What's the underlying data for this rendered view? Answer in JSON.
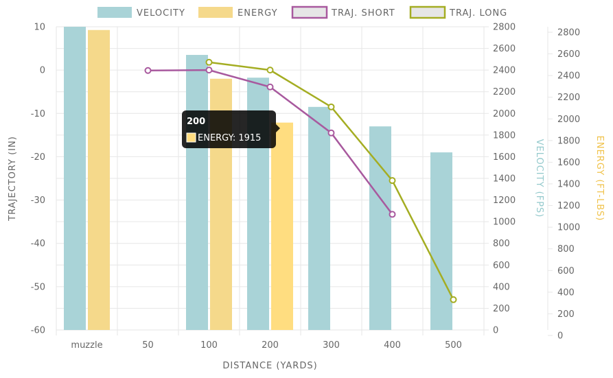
{
  "chart_data": {
    "type": "bar",
    "categories": [
      "muzzle",
      "50",
      "100",
      "200",
      "300",
      "400",
      "500"
    ],
    "xlabel": "DISTANCE (YARDS)",
    "legend_position": "top",
    "grid": true,
    "series": [
      {
        "name": "VELOCITY",
        "type": "bar",
        "axis": "velocity",
        "color": "#a9d3d7",
        "values": [
          2800,
          null,
          2540,
          2330,
          2060,
          1880,
          1640
        ]
      },
      {
        "name": "ENERGY",
        "type": "bar",
        "axis": "energy",
        "color": "#f5d98b",
        "values": [
          2770,
          null,
          2320,
          1915,
          null,
          null,
          null
        ]
      },
      {
        "name": "TRAJ. SHORT",
        "type": "line",
        "axis": "trajectory",
        "color": "#a8599e",
        "values": [
          null,
          -0.1,
          0,
          -3.9,
          -14.5,
          -33.3,
          null
        ]
      },
      {
        "name": "TRAJ. LONG",
        "type": "line",
        "axis": "trajectory",
        "color": "#a4ad22",
        "values": [
          null,
          null,
          1.8,
          0,
          -8.5,
          -25.5,
          -53
        ]
      }
    ],
    "axes": {
      "trajectory": {
        "label": "TRAJECTORY (IN)",
        "min": -60,
        "max": 10,
        "ticks": [
          "10",
          "0",
          "-10",
          "-20",
          "-30",
          "-40",
          "-50",
          "-60"
        ]
      },
      "velocity": {
        "label": "VELOCITY (FPS)",
        "min": 0,
        "max": 2800,
        "ticks": [
          "2800",
          "2600",
          "2400",
          "2200",
          "2000",
          "1800",
          "1600",
          "1400",
          "1200",
          "1000",
          "800",
          "600",
          "400",
          "200",
          "0"
        ]
      },
      "energy": {
        "label": "ENERGY (FT-LBS)",
        "min": 0,
        "max": 2800,
        "ticks": [
          "2800",
          "2600",
          "2400",
          "2200",
          "2000",
          "1800",
          "1600",
          "1400",
          "1200",
          "1000",
          "800",
          "600",
          "400",
          "200",
          "0"
        ]
      }
    },
    "tooltip": {
      "title": "200",
      "label": "ENERGY: 1915",
      "category_index": 3,
      "series_index": 1,
      "highlight_color": "#ffdd80"
    }
  }
}
